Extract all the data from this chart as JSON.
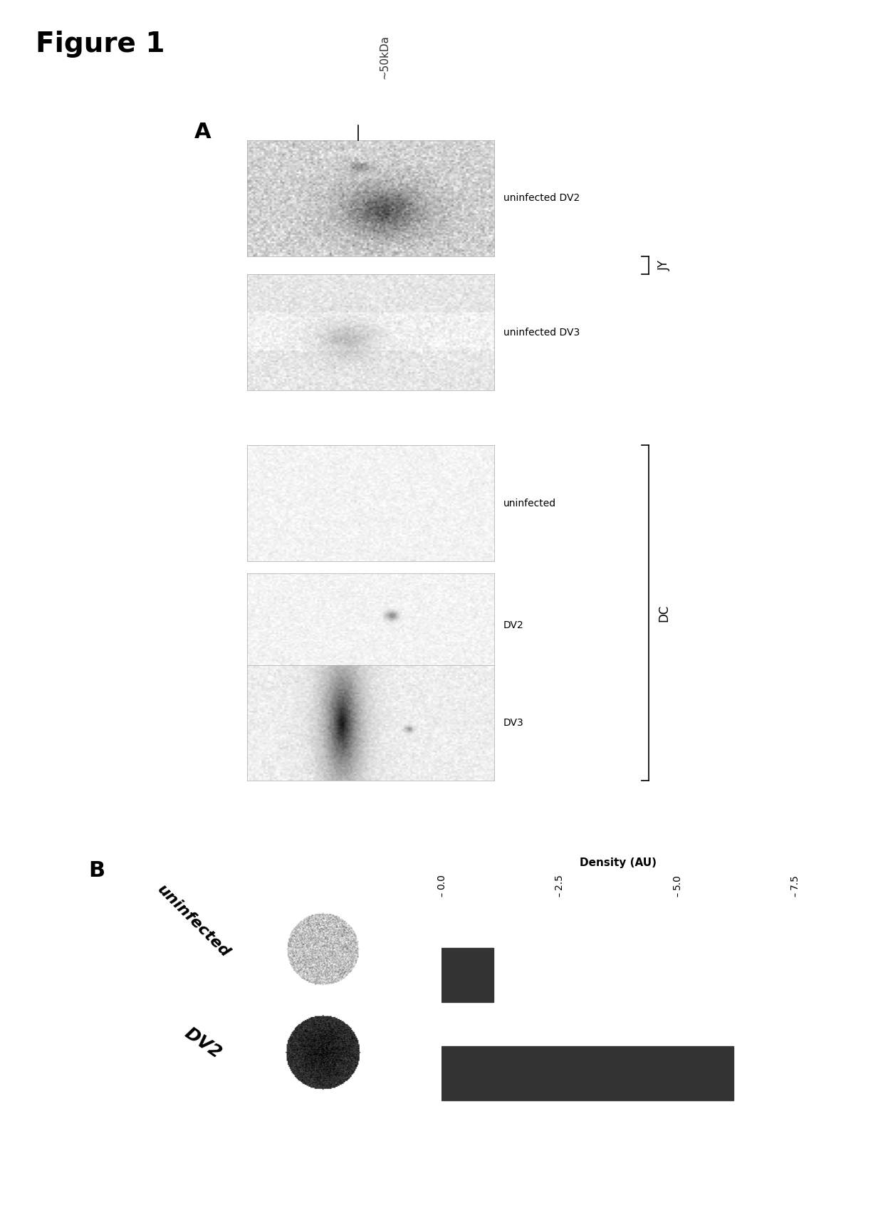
{
  "figure_title": "Figure 1",
  "panel_A_label": "A",
  "panel_B_label": "B",
  "marker_label": "~50kDa",
  "jy_label": "JY",
  "dc_label": "DC",
  "panel_a_row_labels": [
    "uninfected DV2",
    "uninfected DV3",
    "uninfected",
    "DV2",
    "DV3"
  ],
  "panel_b_bar_labels": [
    "uninfected",
    "DV2"
  ],
  "panel_b_values": [
    1.1,
    6.2
  ],
  "panel_b_xlim": [
    0,
    7.5
  ],
  "panel_b_xticks": [
    0.0,
    2.5,
    5.0,
    7.5
  ],
  "panel_b_xlabel": "Density (AU)",
  "bar_color": "#333333",
  "bg_color": "#ffffff"
}
